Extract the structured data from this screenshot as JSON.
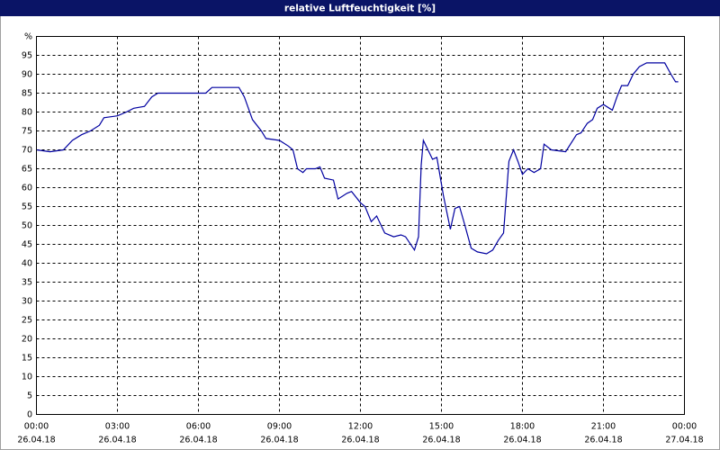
{
  "chart_data": {
    "type": "line",
    "title": "relative Luftfeuchtigkeit [%]",
    "x": [
      0,
      0.5,
      1,
      1.33,
      1.67,
      2,
      2.33,
      2.5,
      3,
      3.33,
      3.6,
      4,
      4.27,
      4.5,
      5,
      6,
      6.27,
      6.5,
      7,
      7.5,
      7.7,
      8,
      8.33,
      8.5,
      9,
      9.33,
      9.5,
      9.67,
      9.87,
      10,
      10.33,
      10.5,
      10.67,
      11,
      11.17,
      11.5,
      11.67,
      12,
      12.17,
      12.4,
      12.6,
      12.9,
      13.23,
      13.5,
      13.67,
      14,
      14.15,
      14.25,
      14.33,
      14.67,
      14.83,
      15.07,
      15.33,
      15.5,
      15.67,
      15.87,
      16.1,
      16.33,
      16.67,
      16.9,
      17.1,
      17.3,
      17.5,
      17.67,
      17.83,
      18,
      18.2,
      18.43,
      18.67,
      18.8,
      19.07,
      19.6,
      20,
      20.17,
      20.4,
      20.6,
      20.77,
      21,
      21.33,
      21.5,
      21.67,
      21.9,
      22.1,
      22.33,
      22.6,
      23.27,
      23.5,
      23.67,
      23.77
    ],
    "series": [
      {
        "color": "#0000a0",
        "values": [
          70,
          69.5,
          70,
          72.5,
          74,
          75,
          76.5,
          78.5,
          79,
          80,
          81,
          81.5,
          84,
          85,
          85,
          85,
          85,
          86.5,
          86.5,
          86.5,
          84,
          78,
          75,
          73,
          72.5,
          71,
          70,
          65,
          64,
          65,
          65,
          65.5,
          62.5,
          62,
          57,
          58.5,
          59,
          56,
          55,
          51,
          52.5,
          48,
          47,
          47.5,
          47,
          43.5,
          47,
          66,
          72.5,
          67.5,
          68,
          58,
          49,
          54.5,
          55,
          50,
          44,
          43,
          42.5,
          43.5,
          46,
          48,
          67,
          70,
          67,
          63.5,
          65,
          64,
          65,
          71.5,
          70,
          69.5,
          74,
          74.5,
          77,
          78,
          81,
          82,
          80.5,
          84,
          87,
          87,
          90,
          92,
          93,
          93,
          90,
          88,
          88
        ]
      }
    ],
    "xlim": [
      0,
      24
    ],
    "xticks": [
      {
        "value": 0,
        "label": "00:00"
      },
      {
        "value": 3,
        "label": "03:00"
      },
      {
        "value": 6,
        "label": "06:00"
      },
      {
        "value": 9,
        "label": "09:00"
      },
      {
        "value": 12,
        "label": "12:00"
      },
      {
        "value": 15,
        "label": "15:00"
      },
      {
        "value": 18,
        "label": "18:00"
      },
      {
        "value": 21,
        "label": "21:00"
      },
      {
        "value": 24,
        "label": "00:00"
      }
    ],
    "xtick_dates": [
      "26.04.18",
      "26.04.18",
      "26.04.18",
      "26.04.18",
      "26.04.18",
      "26.04.18",
      "26.04.18",
      "26.04.18",
      "27.04.18"
    ],
    "ylim": [
      0,
      100
    ],
    "yticks": [
      0,
      5,
      10,
      15,
      20,
      25,
      30,
      35,
      40,
      45,
      50,
      55,
      60,
      65,
      70,
      75,
      80,
      85,
      90,
      95,
      {
        "value": 100,
        "label": "%"
      }
    ],
    "grid": true
  }
}
